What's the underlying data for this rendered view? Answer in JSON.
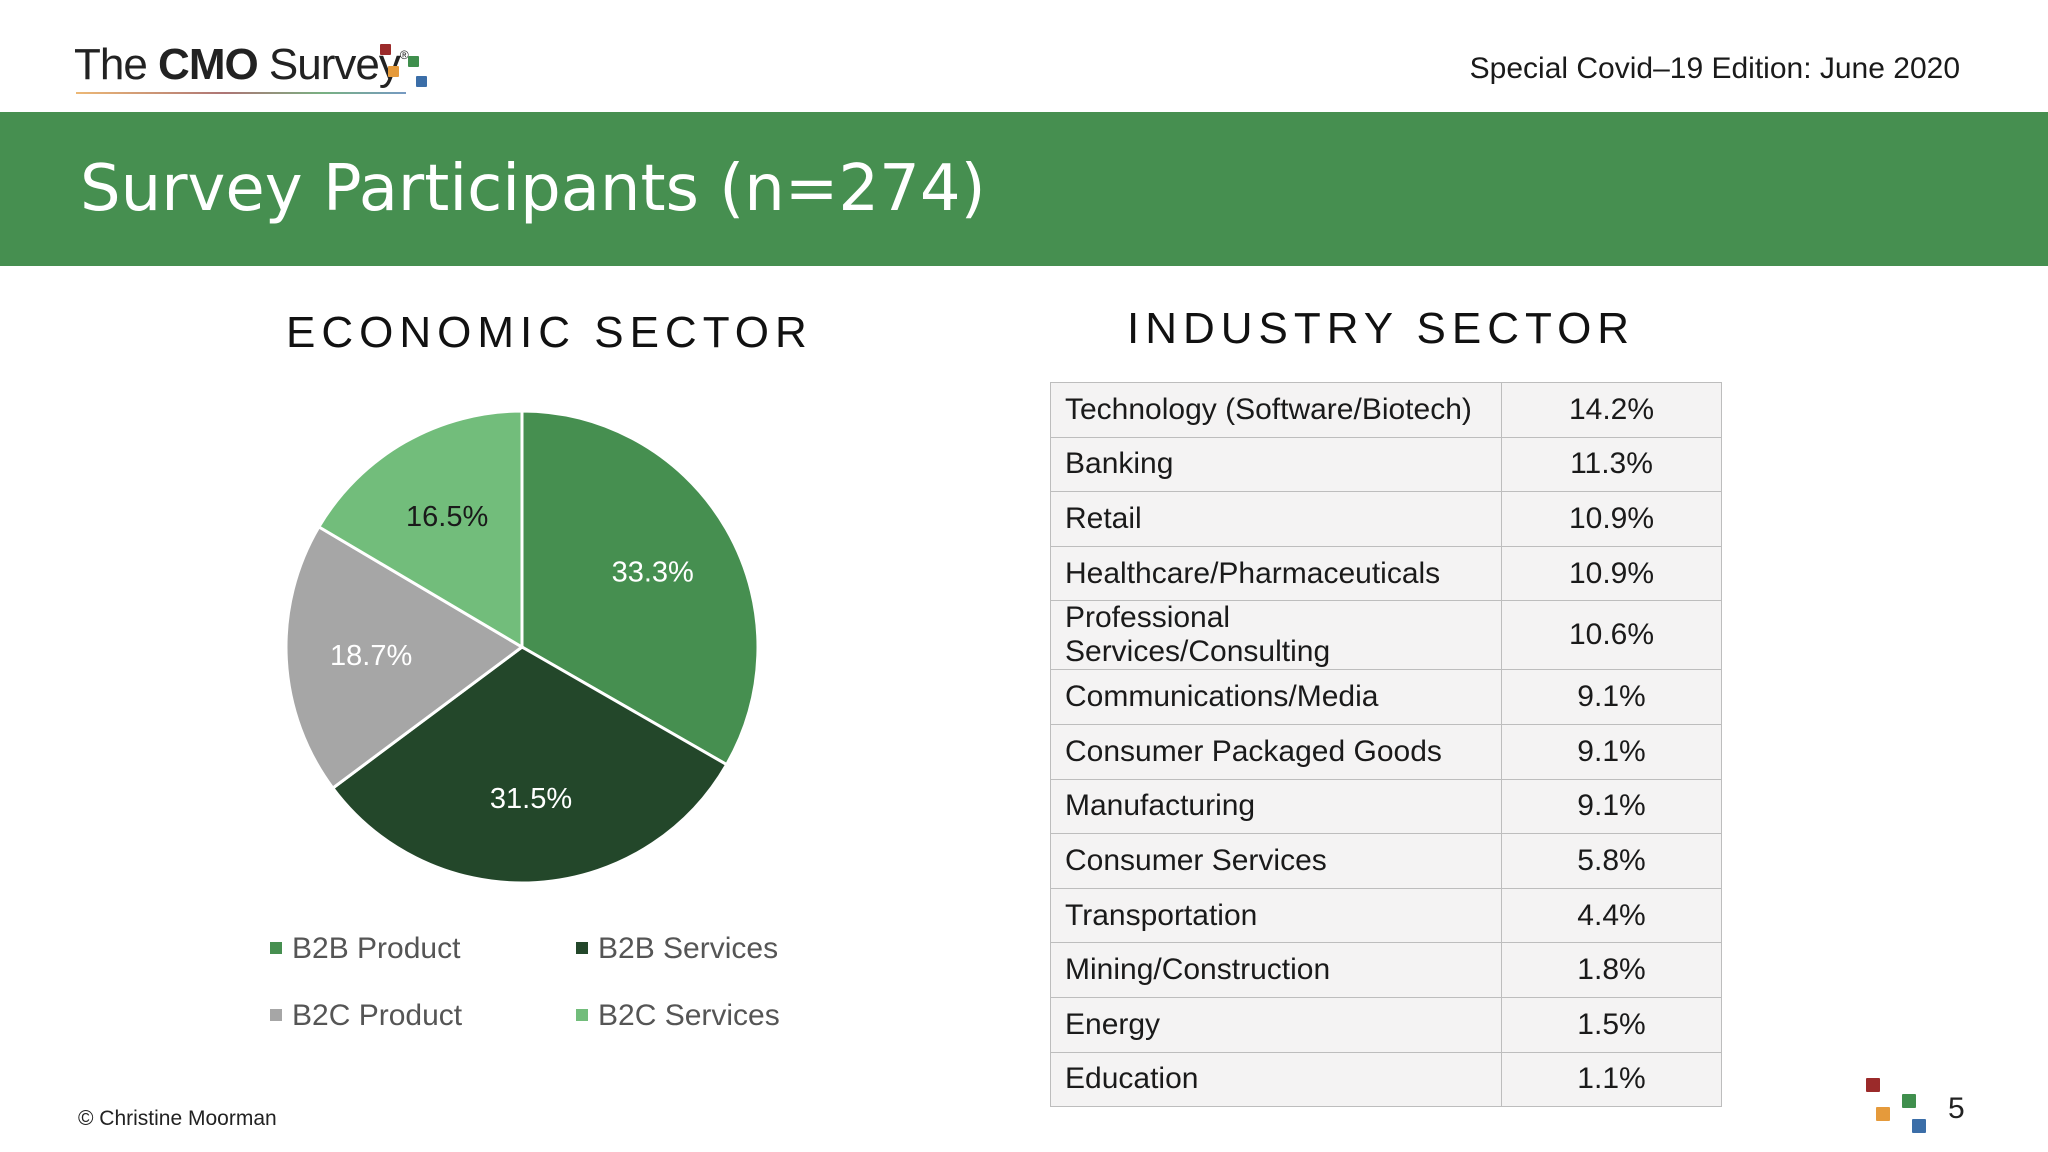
{
  "header": {
    "logo_thin": "The ",
    "logo_bold": "CMO",
    "logo_thin2": " Survey",
    "logo_mark": "®",
    "edition": "Special Covid–19 Edition: June 2020"
  },
  "banner": {
    "title": "Survey Participants (n=274)"
  },
  "economic": {
    "title": "ECONOMIC SECTOR"
  },
  "industry": {
    "title": "INDUSTRY SECTOR",
    "rows": [
      {
        "name": "Technology (Software/Biotech)",
        "pct": "14.2%"
      },
      {
        "name": "Banking",
        "pct": "11.3%"
      },
      {
        "name": "Retail",
        "pct": "10.9%"
      },
      {
        "name": "Healthcare/Pharmaceuticals",
        "pct": "10.9%"
      },
      {
        "name": "Professional Services/Consulting",
        "pct": "10.6%"
      },
      {
        "name": "Communications/Media",
        "pct": "9.1%"
      },
      {
        "name": "Consumer Packaged Goods",
        "pct": "9.1%"
      },
      {
        "name": "Manufacturing",
        "pct": "9.1%"
      },
      {
        "name": "Consumer Services",
        "pct": "5.8%"
      },
      {
        "name": "Transportation",
        "pct": "4.4%"
      },
      {
        "name": "Mining/Construction",
        "pct": "1.8%"
      },
      {
        "name": "Energy",
        "pct": "1.5%"
      },
      {
        "name": "Education",
        "pct": "1.1%"
      }
    ]
  },
  "chart_data": {
    "type": "pie",
    "title": "ECONOMIC SECTOR",
    "categories": [
      "B2B Product",
      "B2B Services",
      "B2C Product",
      "B2C Services"
    ],
    "values": [
      33.3,
      31.5,
      18.7,
      16.5
    ],
    "labels": [
      "33.3%",
      "31.5%",
      "18.7%",
      "16.5%"
    ],
    "colors": [
      "#468f50",
      "#23472a",
      "#a6a6a6",
      "#72bd7b"
    ],
    "label_colors": [
      "#ffffff",
      "#ffffff",
      "#ffffff",
      "#1a1a1a"
    ],
    "legend_placement": "bottom"
  },
  "footer": {
    "copyright": "© Christine Moorman",
    "page": "5"
  },
  "colors": {
    "brand_green": "#468f50",
    "logo_red": "#9b2a2a",
    "logo_orange": "#e59a3b",
    "logo_green": "#3f8f4d",
    "logo_blue": "#3b6ea8"
  }
}
